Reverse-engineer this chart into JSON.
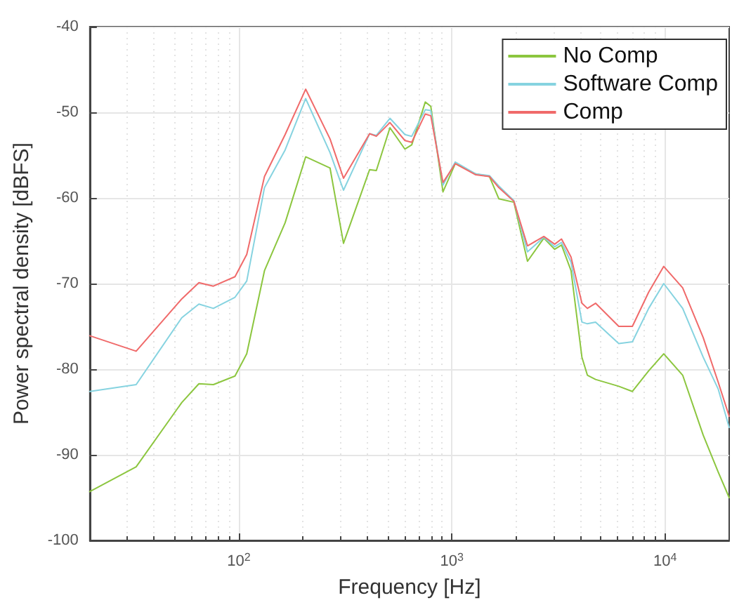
{
  "chart_data": {
    "type": "line",
    "xlabel": "Frequency [Hz]",
    "ylabel": "Power spectral density [dBFS]",
    "log": "x",
    "grid": true,
    "legend": "top right",
    "marker": "none",
    "line_style": "solid",
    "xlim": [
      20,
      20000
    ],
    "xticks": [
      {
        "value": 100,
        "label": "10$^{2}$"
      },
      {
        "value": 1000,
        "label": "10$^{3}$"
      },
      {
        "value": 10000,
        "label": "10$^{4}$"
      }
    ],
    "ylim": [
      -100,
      -40
    ],
    "yticks": [
      -100,
      -90,
      -80,
      -70,
      -60,
      -50,
      -40
    ],
    "x": [
      20,
      33,
      54,
      65,
      76,
      96,
      109,
      132,
      165,
      206,
      268,
      310,
      411,
      442,
      512,
      602,
      648,
      750,
      796,
      908,
      1037,
      1294,
      1500,
      1660,
      1953,
      2263,
      2700,
      3036,
      3268,
      3622,
      4074,
      4322,
      4722,
      6066,
      7027,
      8380,
      9860,
      12100,
      15100,
      17750,
      20000
    ],
    "series": [
      {
        "name": "No Comp",
        "color": "#8cc63f",
        "values": [
          -94.3,
          -91.4,
          -83.9,
          -81.7,
          -81.8,
          -80.8,
          -78.2,
          -68.5,
          -62.9,
          -55.2,
          -56.5,
          -65.3,
          -56.7,
          -56.8,
          -51.8,
          -54.3,
          -53.8,
          -48.8,
          -49.3,
          -59.3,
          -56.0,
          -57.2,
          -57.5,
          -60.1,
          -60.5,
          -67.4,
          -64.7,
          -66.0,
          -65.5,
          -68.5,
          -78.6,
          -80.7,
          -81.2,
          -82.0,
          -82.6,
          -80.2,
          -78.2,
          -80.7,
          -87.7,
          -92.0,
          -95.0
        ]
      },
      {
        "name": "Software Comp",
        "color": "#86d3e0",
        "values": [
          -82.6,
          -81.8,
          -74.0,
          -72.4,
          -72.9,
          -71.6,
          -69.7,
          -58.8,
          -54.4,
          -48.4,
          -54.7,
          -59.1,
          -52.5,
          -52.7,
          -50.7,
          -52.6,
          -52.8,
          -49.7,
          -49.8,
          -58.5,
          -55.8,
          -57.2,
          -57.4,
          -58.6,
          -60.3,
          -66.3,
          -64.6,
          -65.7,
          -65.2,
          -67.5,
          -74.5,
          -74.7,
          -74.5,
          -77.0,
          -76.8,
          -72.9,
          -70.0,
          -72.9,
          -78.6,
          -82.3,
          -86.8
        ]
      },
      {
        "name": "Comp",
        "color": "#f06a6a",
        "values": [
          -76.1,
          -77.9,
          -71.8,
          -69.9,
          -70.3,
          -69.2,
          -66.6,
          -57.5,
          -52.6,
          -47.3,
          -53.1,
          -57.7,
          -52.5,
          -52.8,
          -51.2,
          -53.3,
          -53.5,
          -50.2,
          -50.4,
          -58.2,
          -56.0,
          -57.3,
          -57.5,
          -58.8,
          -60.4,
          -65.6,
          -64.5,
          -65.4,
          -64.8,
          -66.9,
          -72.3,
          -72.9,
          -72.3,
          -75.0,
          -75.0,
          -71.0,
          -68.0,
          -70.5,
          -76.3,
          -81.5,
          -85.5
        ]
      }
    ]
  }
}
